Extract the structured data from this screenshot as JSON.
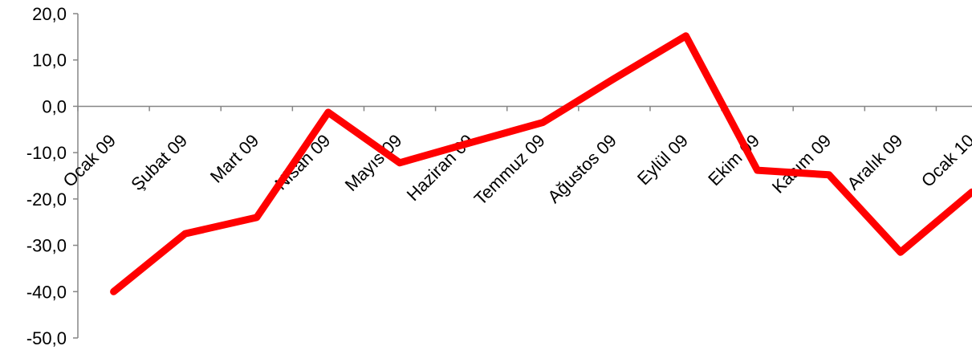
{
  "chart_data": {
    "type": "line",
    "title": "",
    "xlabel": "",
    "ylabel": "",
    "categories": [
      "Ocak 09",
      "Şubat 09",
      "Mart 09",
      "Nisan 09",
      "Mayıs 09",
      "Haziran 09",
      "Temmuz 09",
      "Ağustos 09",
      "Eylül 09",
      "Ekim 09",
      "Kasım 09",
      "Aralık 09",
      "Ocak 10"
    ],
    "series": [
      {
        "name": "",
        "values": [
          -40.0,
          -27.5,
          -24.0,
          -1.3,
          -12.2,
          -7.8,
          -3.5,
          6.0,
          15.2,
          -13.8,
          -14.8,
          -31.5,
          -18.5
        ],
        "color": "#ff0000"
      }
    ],
    "ylim": [
      -50,
      20
    ],
    "y_ticks": [
      "20,0",
      "10,0",
      "0,0",
      "-10,0",
      "-20,0",
      "-30,0",
      "-40,0",
      "-50,0"
    ],
    "grid": false,
    "legend": "none"
  }
}
